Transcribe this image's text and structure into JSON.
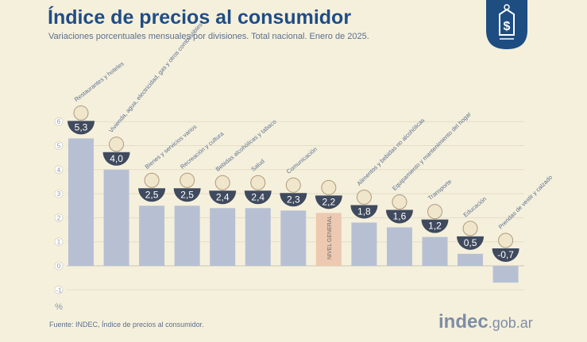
{
  "header": {
    "title": "Índice de precios al consumidor",
    "subtitle": "Variaciones porcentuales mensuales por divisiones. Total nacional. Enero de 2025."
  },
  "badge_icon": "price-tag-dollar-icon",
  "footer": {
    "source": "Fuente: INDEC, Índice de precios al consumidor.",
    "brand_main": "indec",
    "brand_suffix": ".gob.ar"
  },
  "colors": {
    "title": "#1f4d86",
    "bar": "#b7c0d3",
    "bar_highlight": "#ecc9b0",
    "label_bg": "#3f4a5e",
    "background": "#f5f0dc",
    "badge": "#1e4d82"
  },
  "chart_data": {
    "type": "bar",
    "title": "Índice de precios al consumidor",
    "ylabel": "%",
    "ylim": [
      -1,
      6
    ],
    "yticks": [
      "6",
      "5",
      "4",
      "3",
      "2",
      "1",
      "0",
      "-1"
    ],
    "grid": true,
    "categories": [
      "Restaurantes y hoteles",
      "Vivienda, agua, electricidad, gas y otros combustibles",
      "Bienes y servicios varios",
      "Recreación y cultura",
      "Bebidas alcohólicas y tabaco",
      "Salud",
      "Comunicación",
      "NIVEL GENERAL",
      "Alimentos y bebidas no alcohólicas",
      "Equipamiento y mantenimiento del hogar",
      "Transporte",
      "Educación",
      "Prendas de vestir y calzado"
    ],
    "values": [
      5.3,
      4.0,
      2.5,
      2.5,
      2.4,
      2.4,
      2.3,
      2.2,
      1.8,
      1.6,
      1.2,
      0.5,
      -0.7
    ],
    "value_labels": [
      "5,3",
      "4,0",
      "2,5",
      "2,5",
      "2,4",
      "2,4",
      "2,3",
      "2,2",
      "1,8",
      "1,6",
      "1,2",
      "0,5",
      "-0,7"
    ],
    "icons": [
      "fork-knife-plate-icon",
      "lightbulb-icon",
      "shopping-items-icon",
      "beach-umbrella-icon",
      "beverages-icon",
      "medical-cross-icon",
      "mobile-phone-icon",
      "shopping-basket-icon",
      "food-icon",
      "household-icon",
      "bus-icon",
      "book-icon",
      "clothing-icon"
    ],
    "highlight_index": 7
  }
}
